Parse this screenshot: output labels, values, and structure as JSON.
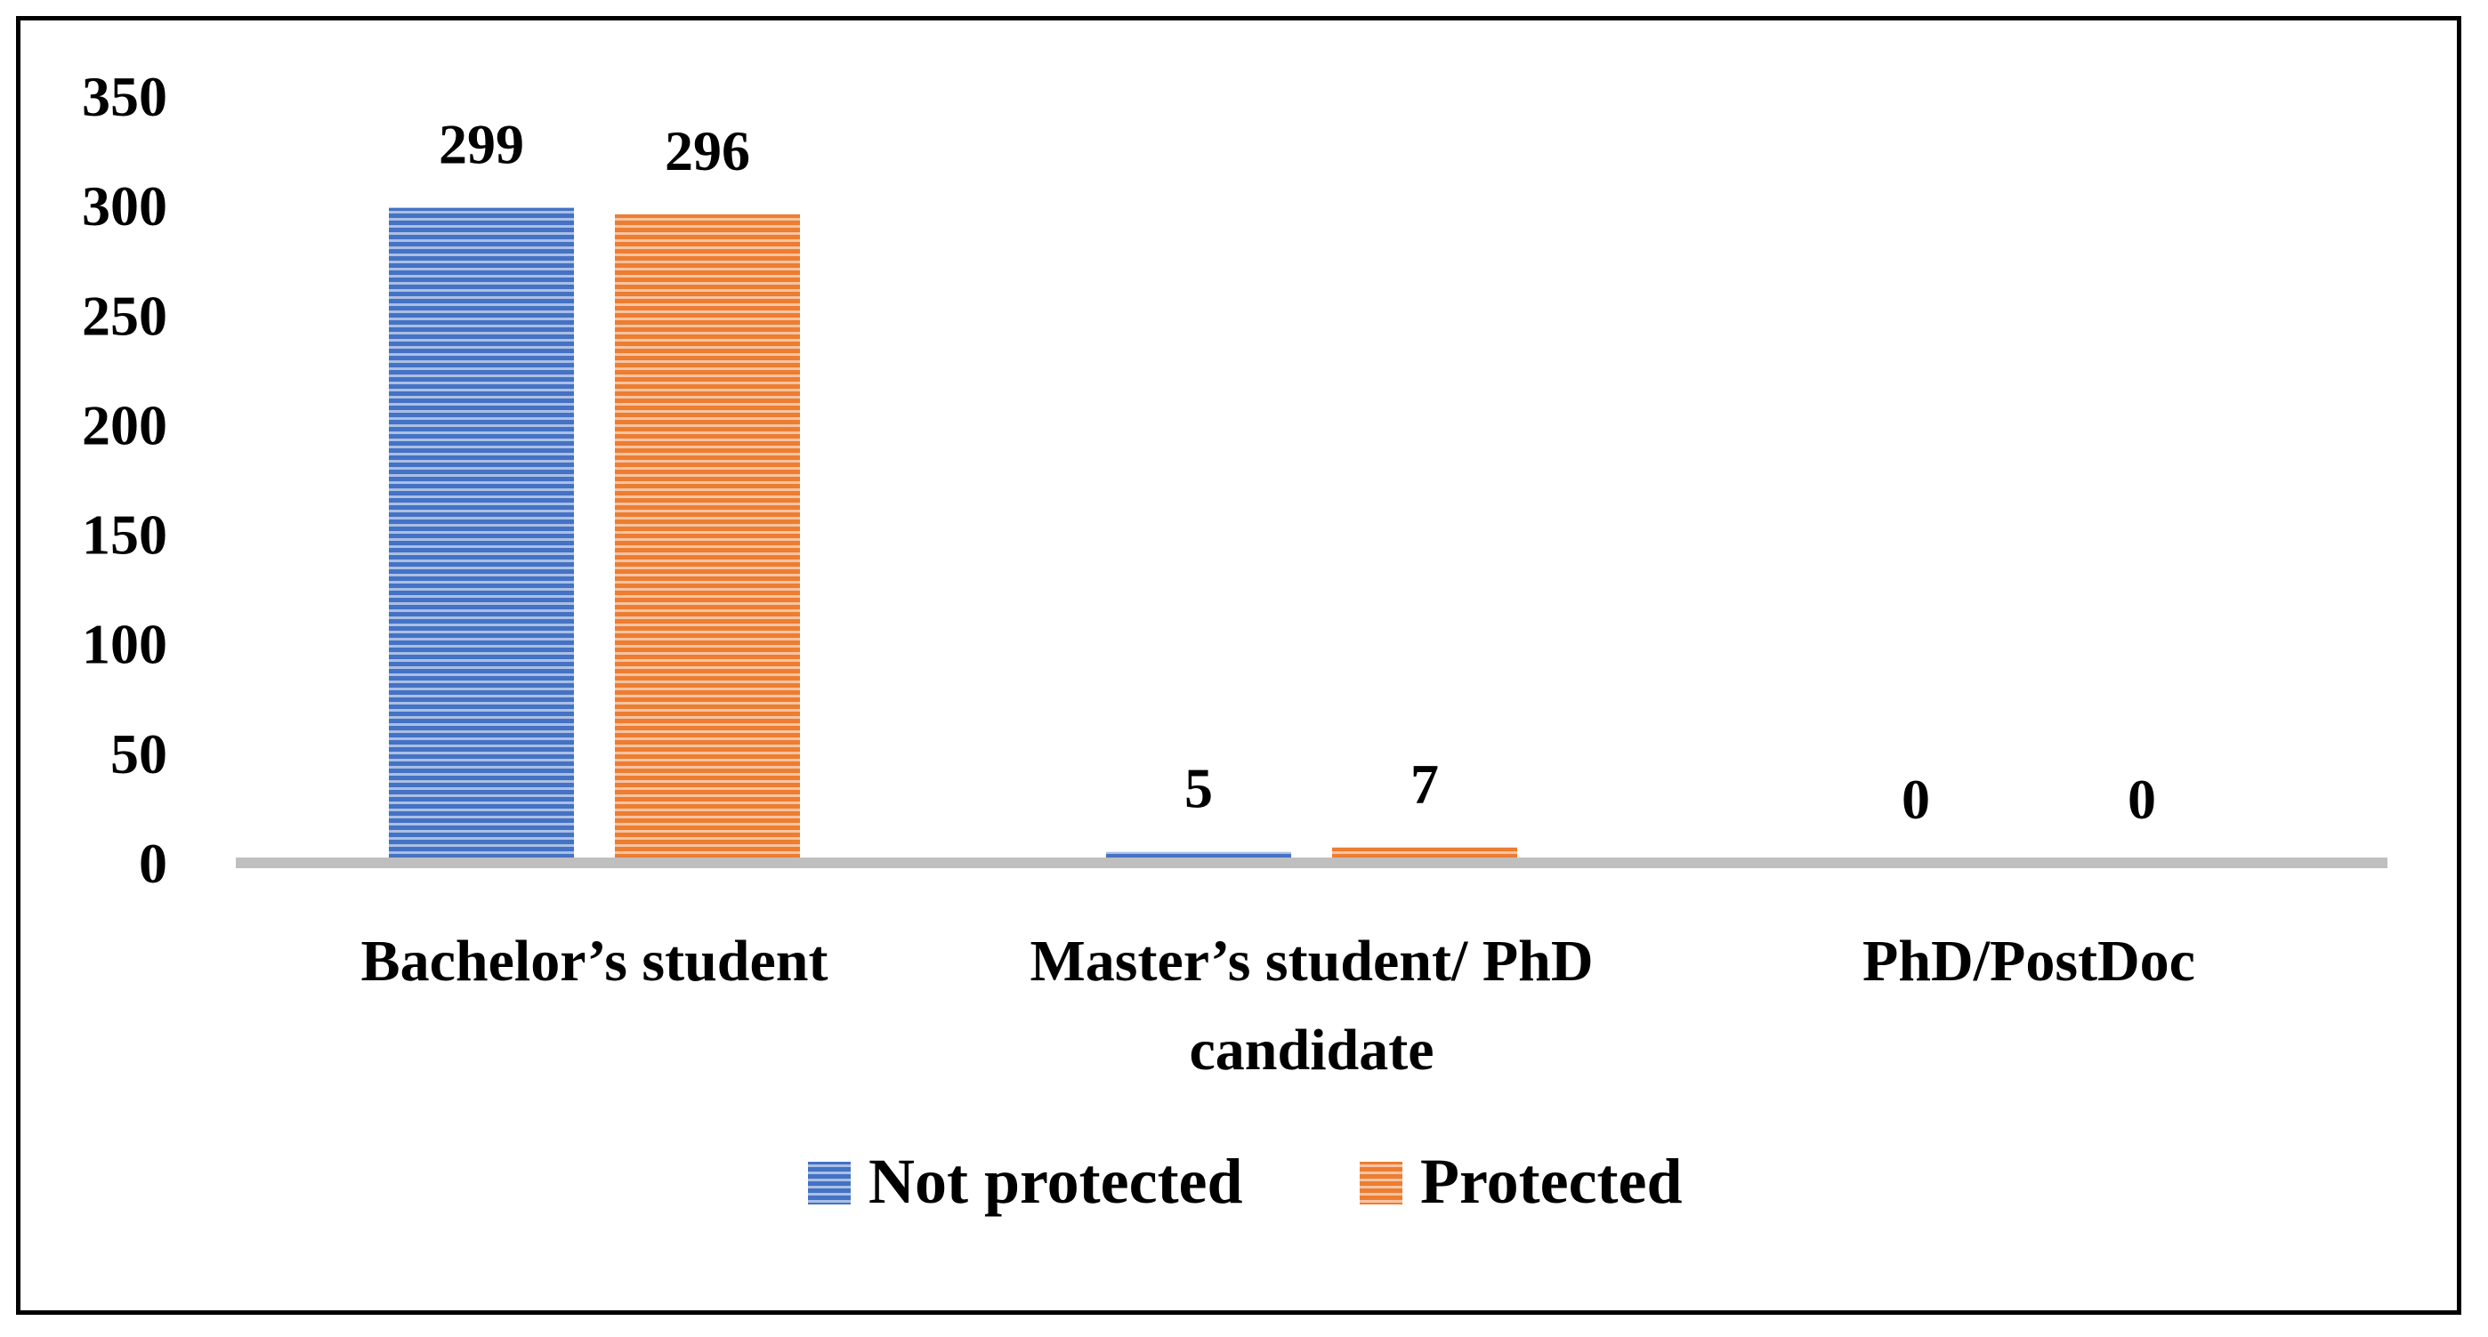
{
  "chart_data": {
    "type": "bar",
    "categories": [
      "Bachelor’s student",
      "Master’s student/ PhD candidate",
      "PhD/PostDoc"
    ],
    "category_lines": [
      [
        "Bachelor’s student"
      ],
      [
        "Master’s student/ PhD",
        "candidate"
      ],
      [
        "PhD/PostDoc"
      ]
    ],
    "series": [
      {
        "name": "Not protected",
        "values": [
          299,
          5,
          0
        ],
        "color": "#4472C4"
      },
      {
        "name": "Protected",
        "values": [
          296,
          7,
          0
        ],
        "color": "#ED7D31"
      }
    ],
    "title": "",
    "xlabel": "",
    "ylabel": "",
    "ylim": [
      0,
      350
    ],
    "yticks": [
      0,
      50,
      100,
      150,
      200,
      250,
      300,
      350
    ],
    "grid": false,
    "legend": "bottom",
    "data_labels": true,
    "bar_pattern": "horizontal-stripes"
  }
}
